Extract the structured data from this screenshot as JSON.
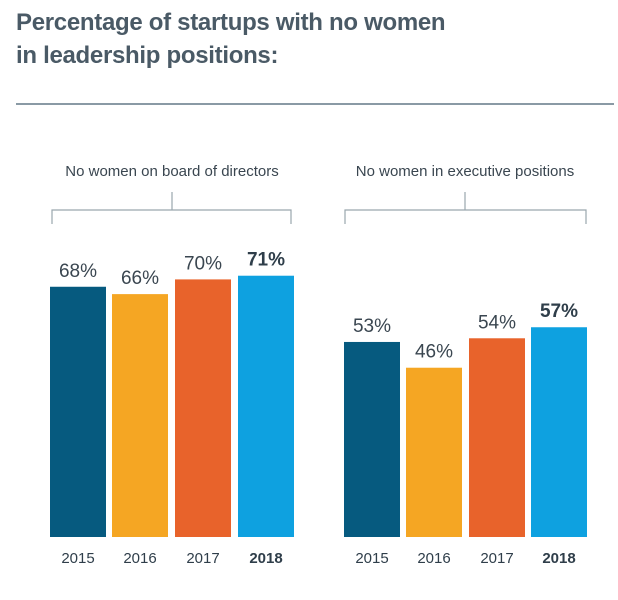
{
  "title": "Percentage of startups with no women in leadership positions:",
  "chart_data": [
    {
      "type": "bar",
      "title": "No women on board of directors",
      "categories": [
        "2015",
        "2016",
        "2017",
        "2018"
      ],
      "values": [
        68,
        66,
        70,
        71
      ],
      "value_labels": [
        "68%",
        "66%",
        "70%",
        "71%"
      ],
      "highlight_index": 3,
      "colors": [
        "#065a7f",
        "#f5a623",
        "#e8632b",
        "#0ea1e0"
      ],
      "ylim": [
        0,
        100
      ],
      "grid": false
    },
    {
      "type": "bar",
      "title": "No women in executive positions",
      "categories": [
        "2015",
        "2016",
        "2017",
        "2018"
      ],
      "values": [
        53,
        46,
        54,
        57
      ],
      "value_labels": [
        "53%",
        "46%",
        "54%",
        "57%"
      ],
      "highlight_index": 3,
      "colors": [
        "#065a7f",
        "#f5a623",
        "#e8632b",
        "#0ea1e0"
      ],
      "ylim": [
        0,
        100
      ],
      "grid": false
    }
  ]
}
